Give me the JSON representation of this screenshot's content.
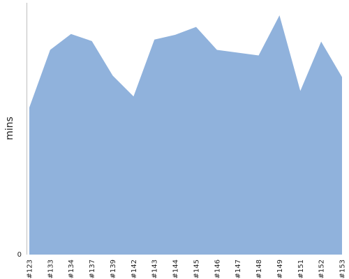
{
  "chart_data": {
    "type": "area",
    "title": "",
    "xlabel": "",
    "ylabel": "mins",
    "categories": [
      "#123",
      "#133",
      "#134",
      "#137",
      "#139",
      "#142",
      "#143",
      "#144",
      "#145",
      "#146",
      "#147",
      "#148",
      "#149",
      "#151",
      "#152",
      "#153"
    ],
    "series": [
      {
        "values": [
          58.4,
          81.3,
          87.6,
          84.8,
          71.1,
          62.8,
          85.4,
          87.3,
          90.4,
          81.3,
          80.2,
          79.1,
          95.0,
          65.0,
          84.6,
          70.5
        ]
      }
    ],
    "y_tick_labels": [
      "0"
    ],
    "ylim": [
      0,
      100
    ],
    "grid": false,
    "legend": "none",
    "colors": {
      "fill": "#90b2dc",
      "axis": "#bfbfbf"
    }
  }
}
